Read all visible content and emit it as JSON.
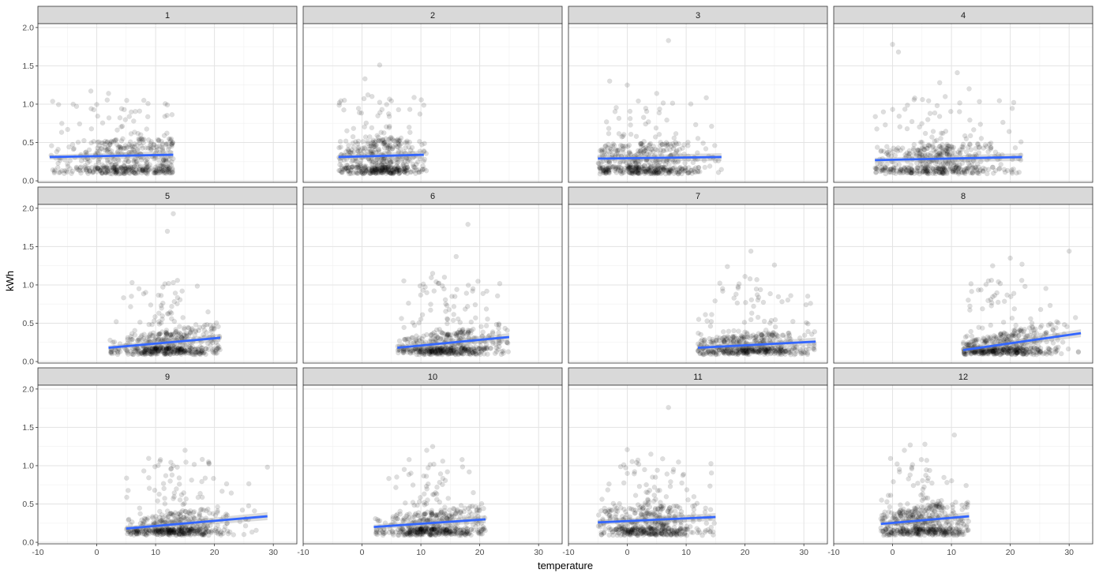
{
  "chart_data": {
    "type": "scatter",
    "layout": "facet_wrap",
    "ncol": 4,
    "xlabel": "temperature",
    "ylabel": "kWh",
    "xlim": [
      -10,
      34
    ],
    "ylim": [
      -0.02,
      2.05
    ],
    "x_ticks": [
      -10,
      0,
      10,
      20,
      30
    ],
    "x_tick_labels": [
      "-10",
      "0",
      "10",
      "20",
      "30"
    ],
    "y_ticks": [
      0.0,
      0.5,
      1.0,
      1.5,
      2.0
    ],
    "y_tick_labels": [
      "0.0",
      "0.5",
      "1.0",
      "1.5",
      "2.0"
    ],
    "grid": true,
    "point_color": "#000000",
    "point_alpha": 0.13,
    "trend_color": "#3366ff",
    "panels": [
      {
        "label": "1",
        "temp_range": [
          -8,
          13
        ],
        "trend": {
          "x": [
            -8,
            13
          ],
          "y": [
            0.31,
            0.34
          ]
        },
        "cluster": {
          "center": 5,
          "spread": 5.5,
          "min": -8,
          "max": 13
        },
        "outliers": [
          {
            "x": -1,
            "y": 1.17
          },
          {
            "x": 2,
            "y": 1.14
          },
          {
            "x": 8,
            "y": 1.05
          },
          {
            "x": 12,
            "y": 0.99
          },
          {
            "x": -4,
            "y": 1.0
          }
        ]
      },
      {
        "label": "2",
        "temp_range": [
          -4,
          11
        ],
        "trend": {
          "x": [
            -4,
            10.5
          ],
          "y": [
            0.31,
            0.34
          ]
        },
        "cluster": {
          "center": 3,
          "spread": 4,
          "min": -4,
          "max": 11
        },
        "outliers": [
          {
            "x": 3,
            "y": 1.51
          },
          {
            "x": 0.5,
            "y": 1.33
          },
          {
            "x": 1,
            "y": 1.12
          },
          {
            "x": -3,
            "y": 1.05
          }
        ]
      },
      {
        "label": "3",
        "temp_range": [
          -5,
          16
        ],
        "trend": {
          "x": [
            -5,
            16
          ],
          "y": [
            0.29,
            0.31
          ]
        },
        "cluster": {
          "center": 3,
          "spread": 5,
          "min": -5,
          "max": 16
        },
        "outliers": [
          {
            "x": 7,
            "y": 1.83
          },
          {
            "x": -3,
            "y": 1.3
          },
          {
            "x": 0,
            "y": 1.25
          },
          {
            "x": 5,
            "y": 1.14
          }
        ]
      },
      {
        "label": "4",
        "temp_range": [
          -3,
          22
        ],
        "trend": {
          "x": [
            -3,
            22
          ],
          "y": [
            0.27,
            0.31
          ]
        },
        "cluster": {
          "center": 8,
          "spread": 6,
          "min": -3,
          "max": 22
        },
        "outliers": [
          {
            "x": 0,
            "y": 1.78
          },
          {
            "x": 1,
            "y": 1.68
          },
          {
            "x": 11,
            "y": 1.41
          },
          {
            "x": 8,
            "y": 1.28
          },
          {
            "x": 13,
            "y": 1.2
          }
        ]
      },
      {
        "label": "5",
        "temp_range": [
          2,
          21
        ],
        "trend": {
          "x": [
            2,
            21
          ],
          "y": [
            0.18,
            0.31
          ]
        },
        "cluster": {
          "center": 12,
          "spread": 4.5,
          "min": 2,
          "max": 21
        },
        "outliers": [
          {
            "x": 13,
            "y": 1.93
          },
          {
            "x": 12,
            "y": 1.7
          },
          {
            "x": 13,
            "y": 1.03
          },
          {
            "x": 6,
            "y": 1.03
          }
        ]
      },
      {
        "label": "6",
        "temp_range": [
          6,
          25
        ],
        "trend": {
          "x": [
            6,
            25
          ],
          "y": [
            0.18,
            0.32
          ]
        },
        "cluster": {
          "center": 15,
          "spread": 4.5,
          "min": 6,
          "max": 25
        },
        "outliers": [
          {
            "x": 18,
            "y": 1.79
          },
          {
            "x": 16,
            "y": 1.37
          },
          {
            "x": 12,
            "y": 1.15
          },
          {
            "x": 14,
            "y": 1.1
          }
        ]
      },
      {
        "label": "7",
        "temp_range": [
          12,
          32
        ],
        "trend": {
          "x": [
            12,
            32
          ],
          "y": [
            0.18,
            0.26
          ]
        },
        "cluster": {
          "center": 21,
          "spread": 5,
          "min": 12,
          "max": 32
        },
        "outliers": [
          {
            "x": 21,
            "y": 1.44
          },
          {
            "x": 25,
            "y": 1.26
          },
          {
            "x": 17,
            "y": 1.24
          },
          {
            "x": 20,
            "y": 1.11
          }
        ]
      },
      {
        "label": "8",
        "temp_range": [
          12,
          32
        ],
        "trend": {
          "x": [
            12,
            32
          ],
          "y": [
            0.15,
            0.37
          ]
        },
        "cluster": {
          "center": 19,
          "spread": 4.5,
          "min": 12,
          "max": 32
        },
        "outliers": [
          {
            "x": 30,
            "y": 1.44
          },
          {
            "x": 20,
            "y": 1.35
          },
          {
            "x": 17,
            "y": 1.25
          },
          {
            "x": 22,
            "y": 1.27
          }
        ]
      },
      {
        "label": "9",
        "temp_range": [
          5,
          29
        ],
        "trend": {
          "x": [
            5,
            29
          ],
          "y": [
            0.18,
            0.34
          ]
        },
        "cluster": {
          "center": 14,
          "spread": 4.5,
          "min": 5,
          "max": 29
        },
        "outliers": [
          {
            "x": 15,
            "y": 1.2
          },
          {
            "x": 19,
            "y": 1.05
          },
          {
            "x": 29,
            "y": 0.98
          },
          {
            "x": 13,
            "y": 1.0
          }
        ]
      },
      {
        "label": "10",
        "temp_range": [
          2,
          21
        ],
        "trend": {
          "x": [
            2,
            21
          ],
          "y": [
            0.2,
            0.3
          ]
        },
        "cluster": {
          "center": 12,
          "spread": 4.5,
          "min": 2,
          "max": 21
        },
        "outliers": [
          {
            "x": 12,
            "y": 1.25
          },
          {
            "x": 17,
            "y": 1.08
          },
          {
            "x": 11,
            "y": 1.2
          },
          {
            "x": 8,
            "y": 1.08
          }
        ]
      },
      {
        "label": "11",
        "temp_range": [
          -5,
          15
        ],
        "trend": {
          "x": [
            -5,
            15
          ],
          "y": [
            0.26,
            0.33
          ]
        },
        "cluster": {
          "center": 4,
          "spread": 4.5,
          "min": -5,
          "max": 15
        },
        "outliers": [
          {
            "x": 7,
            "y": 1.76
          },
          {
            "x": 0,
            "y": 1.21
          },
          {
            "x": 4,
            "y": 1.15
          },
          {
            "x": 6,
            "y": 1.09
          }
        ]
      },
      {
        "label": "12",
        "temp_range": [
          -2,
          13
        ],
        "trend": {
          "x": [
            -2,
            13
          ],
          "y": [
            0.24,
            0.34
          ]
        },
        "cluster": {
          "center": 5,
          "spread": 4,
          "min": -2,
          "max": 13
        },
        "outliers": [
          {
            "x": 10.5,
            "y": 1.4
          },
          {
            "x": 3,
            "y": 1.27
          },
          {
            "x": 5.5,
            "y": 1.28
          },
          {
            "x": 2,
            "y": 1.2
          }
        ]
      }
    ]
  }
}
